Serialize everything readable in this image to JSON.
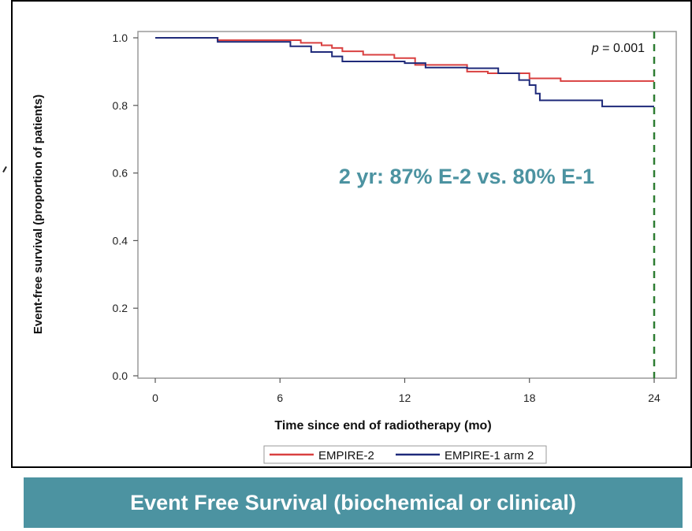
{
  "banner": {
    "text": "Event Free Survival (biochemical or clinical)"
  },
  "chart_data": {
    "type": "line",
    "step": true,
    "title": "",
    "xlabel": "Time since end of radiotherapy (mo)",
    "ylabel": "Event-free survival (proportion of patients)",
    "xlim": [
      0,
      24
    ],
    "ylim": [
      0,
      1.0
    ],
    "xticks": [
      0,
      6,
      12,
      18,
      24
    ],
    "xtick_labels": [
      "0",
      "6",
      "12",
      "18",
      "24"
    ],
    "yticks": [
      0,
      0.2,
      0.4,
      0.6,
      0.8,
      1.0
    ],
    "ytick_labels": [
      "0.0",
      "0.2",
      "0.4",
      "0.6",
      "0.8",
      "1.0"
    ],
    "grid": false,
    "legend_position": "bottom",
    "reference_line": {
      "x": 24,
      "style": "dashed",
      "color": "#2e7d32"
    },
    "annotations": {
      "p_label": "p",
      "p_value": " = 0.001",
      "headline": "2 yr: 87% E-2 vs. 80% E-1"
    },
    "series": [
      {
        "name": "EMPIRE-2",
        "color": "#d94040",
        "x": [
          0,
          3,
          7,
          8,
          8.5,
          9,
          10,
          11.5,
          12.5,
          15,
          16,
          18,
          19.5,
          24
        ],
        "y": [
          1.0,
          0.993,
          0.985,
          0.978,
          0.97,
          0.96,
          0.95,
          0.94,
          0.92,
          0.9,
          0.895,
          0.88,
          0.872,
          0.872
        ]
      },
      {
        "name": "EMPIRE-1 arm 2",
        "color": "#1f2a7a",
        "x": [
          0,
          3,
          6.5,
          7.5,
          8.5,
          9,
          10,
          12,
          13,
          15,
          16.5,
          17.5,
          18,
          18.3,
          18.5,
          21.5,
          24
        ],
        "y": [
          1.0,
          0.988,
          0.975,
          0.958,
          0.945,
          0.93,
          0.93,
          0.925,
          0.912,
          0.91,
          0.895,
          0.875,
          0.86,
          0.835,
          0.815,
          0.797,
          0.797
        ]
      }
    ]
  }
}
